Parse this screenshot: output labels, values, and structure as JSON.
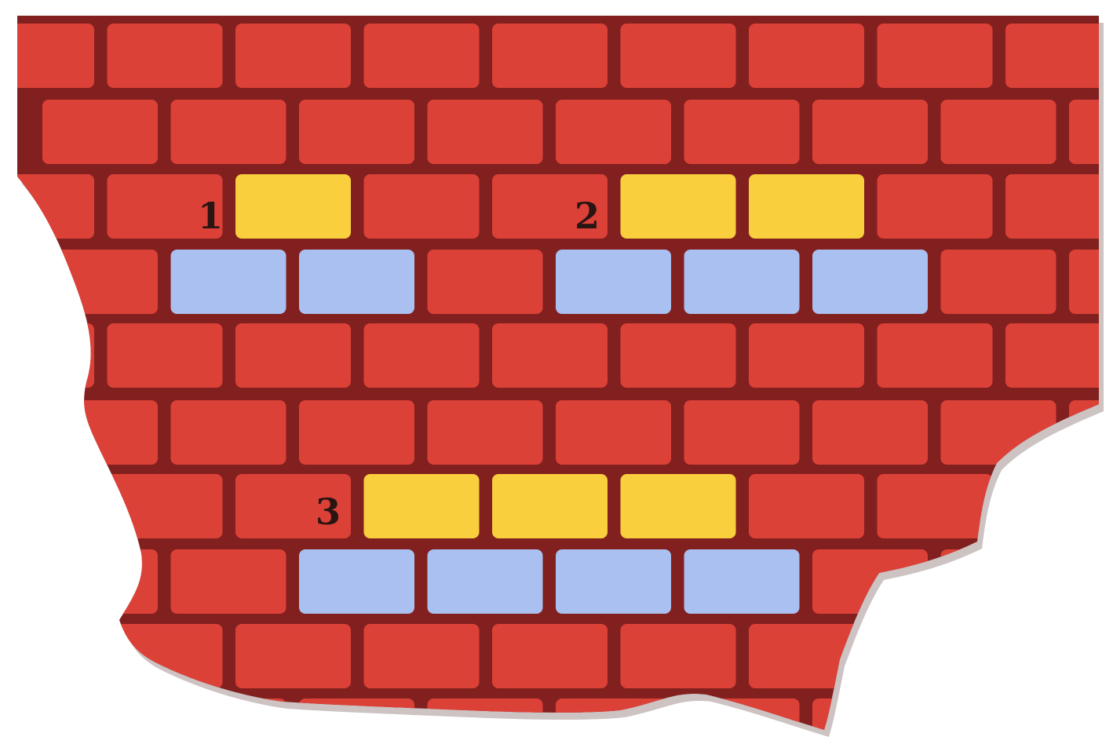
{
  "palette": {
    "brick": "#dc4138",
    "mortar": "#82201f",
    "yellow": "#f9cf3e",
    "blue": "#a9c0f0",
    "label": "#2a1512",
    "background": "#ffffff"
  },
  "patterns": [
    {
      "label": "1",
      "yellow_bricks": 1,
      "blue_bricks": 2
    },
    {
      "label": "2",
      "yellow_bricks": 2,
      "blue_bricks": 3
    },
    {
      "label": "3",
      "yellow_bricks": 3,
      "blue_bricks": 4
    }
  ]
}
